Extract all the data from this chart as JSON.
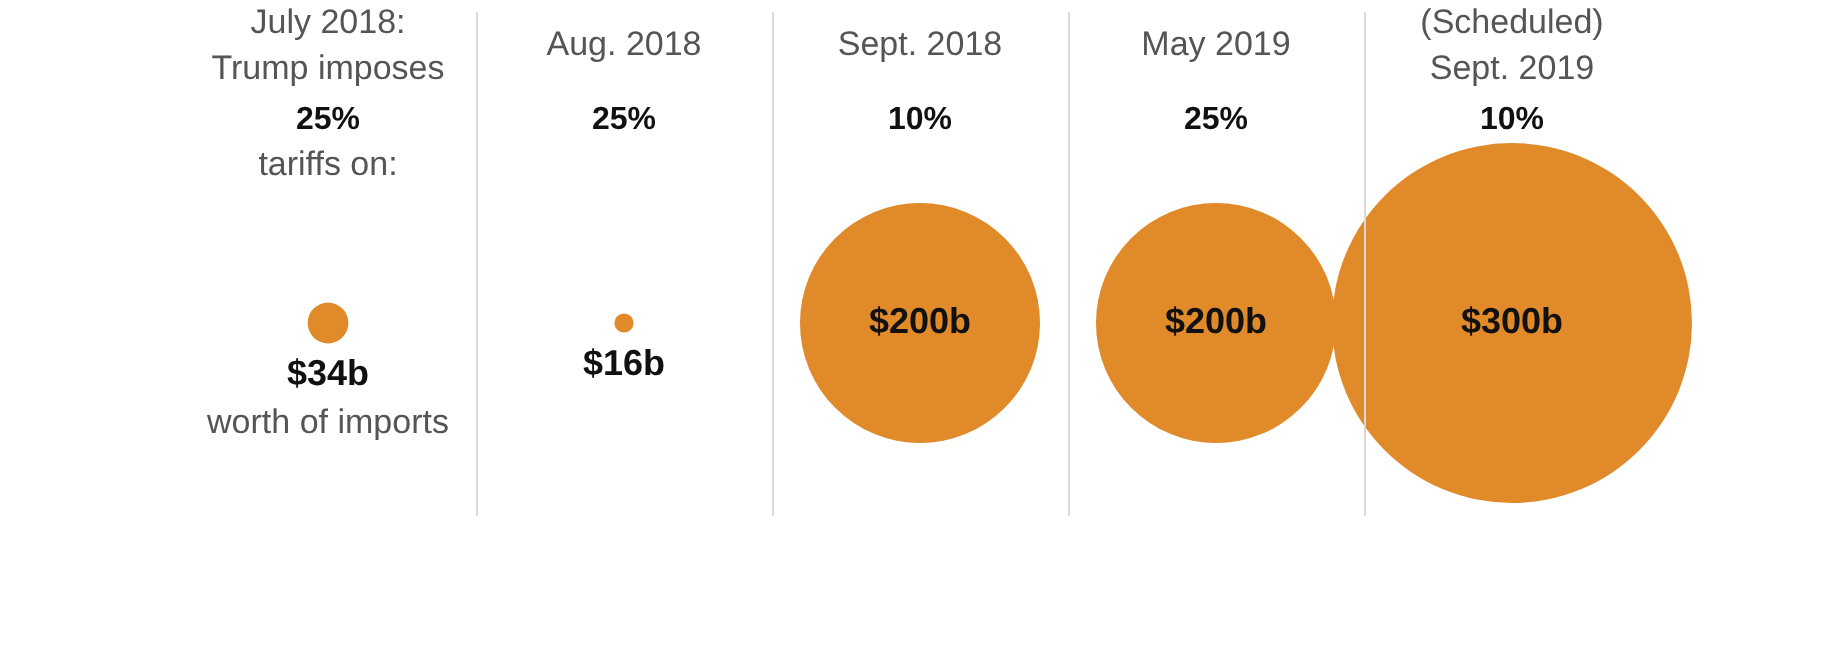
{
  "chart_data": {
    "type": "other",
    "categories": [
      "July 2018:\nTrump imposes",
      "Aug. 2018",
      "Sept. 2018",
      "May 2019",
      "(Scheduled)\nSept. 2019"
    ],
    "values": [
      34,
      16,
      200,
      200,
      300
    ],
    "value_labels": [
      "$34b",
      "$16b",
      "$200b",
      "$200b",
      "$300b"
    ],
    "color": "#e08a2a",
    "annotations": [
      {
        "text": "25%",
        "x": "July 2018:\nTrump imposes"
      },
      {
        "text": "25%",
        "x": "Aug. 2018"
      },
      {
        "text": "10%",
        "x": "Sept. 2018"
      },
      {
        "text": "25%",
        "x": "May 2019"
      },
      {
        "text": "10%",
        "x": "(Scheduled)\nSept. 2019"
      },
      "tariffs on:",
      "worth of imports"
    ],
    "legend": false
  }
}
